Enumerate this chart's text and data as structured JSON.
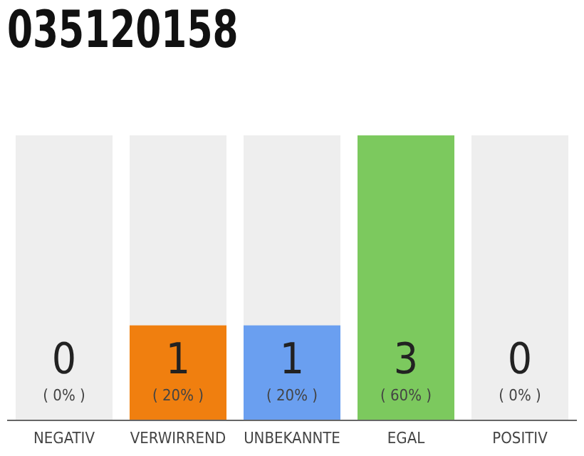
{
  "chart_data": {
    "type": "bar",
    "title": "035120158",
    "categories": [
      "NEGATIV",
      "VERWIRREND",
      "UNBEKANNTE",
      "EGAL",
      "POSITIV"
    ],
    "values": [
      0,
      1,
      1,
      3,
      0
    ],
    "colors": [
      "#f07f0f",
      "#f07f0f",
      "#6a9ff0",
      "#7cc95e",
      "#7cc95e"
    ],
    "bands": [
      {
        "axis": "x",
        "from": "NEGATIV",
        "to": "NEGATIV",
        "color": "#eeeeee"
      },
      {
        "axis": "x",
        "from": "VERWIRREND",
        "to": "VERWIRREND",
        "color": "#eeeeee"
      },
      {
        "axis": "x",
        "from": "UNBEKANNTE",
        "to": "UNBEKANNTE",
        "color": "#eeeeee"
      },
      {
        "axis": "x",
        "from": "POSITIV",
        "to": "POSITIV",
        "color": "#eeeeee"
      }
    ],
    "value_labels": [
      "0\n( 0% )",
      "1\n( 20% )",
      "1\n( 20% )",
      "3\n( 60% )",
      "0\n( 0% )"
    ]
  }
}
